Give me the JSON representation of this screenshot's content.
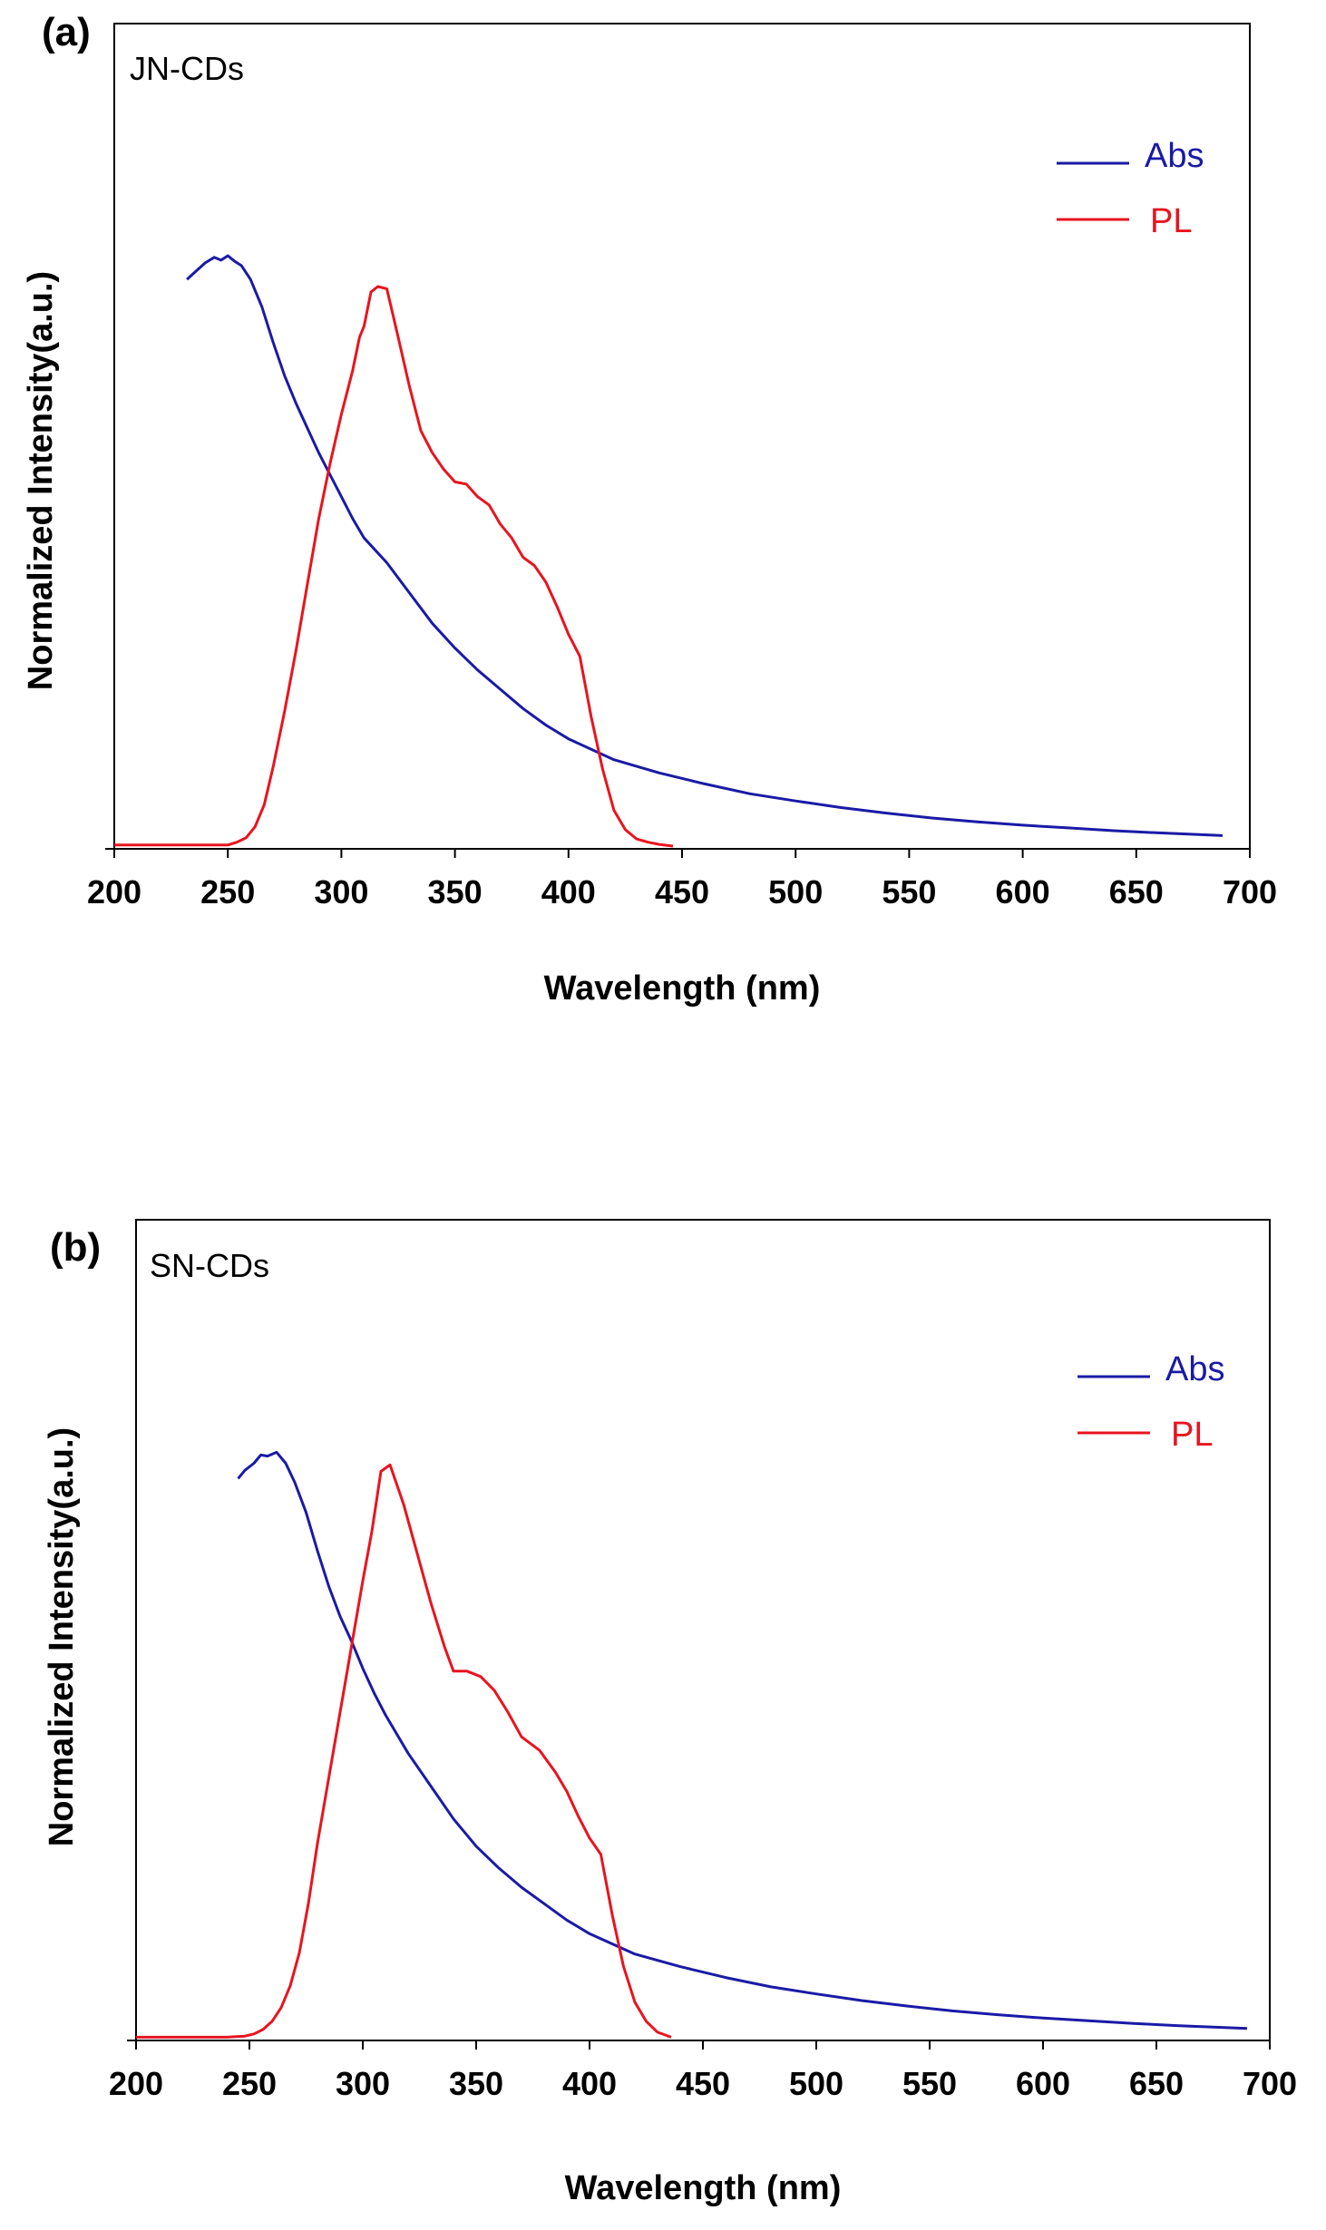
{
  "colors": {
    "abs": "#1a1aa6",
    "pl": "#e8141e",
    "axis": "#000000"
  },
  "chart_data": [
    {
      "type": "line",
      "panel_label": "(a)",
      "title": "JN-CDs",
      "xlabel": "Wavelength (nm)",
      "ylabel": "Normalized Intensity(a.u.)",
      "xlim": [
        200,
        700
      ],
      "ylim": [
        0,
        1.5
      ],
      "xticks": [
        "200",
        "250",
        "300",
        "350",
        "400",
        "450",
        "500",
        "550",
        "600",
        "650",
        "700"
      ],
      "legend_position": "top-right",
      "series": [
        {
          "name": "Abs",
          "color_key": "abs",
          "x": [
            232,
            236,
            240,
            244,
            247,
            250,
            253,
            256,
            260,
            265,
            270,
            275,
            280,
            285,
            290,
            295,
            300,
            305,
            310,
            320,
            330,
            340,
            350,
            360,
            370,
            380,
            390,
            400,
            420,
            440,
            460,
            480,
            500,
            520,
            540,
            560,
            580,
            600,
            620,
            640,
            660,
            688
          ],
          "y": [
            1.035,
            1.05,
            1.065,
            1.075,
            1.07,
            1.078,
            1.068,
            1.06,
            1.035,
            0.985,
            0.92,
            0.86,
            0.81,
            0.765,
            0.72,
            0.68,
            0.64,
            0.6,
            0.565,
            0.52,
            0.465,
            0.41,
            0.365,
            0.325,
            0.29,
            0.255,
            0.225,
            0.2,
            0.162,
            0.138,
            0.118,
            0.1,
            0.087,
            0.075,
            0.065,
            0.056,
            0.049,
            0.043,
            0.038,
            0.033,
            0.029,
            0.024
          ]
        },
        {
          "name": "PL",
          "color_key": "pl",
          "x": [
            200,
            220,
            240,
            250,
            254,
            258,
            262,
            266,
            270,
            275,
            280,
            285,
            290,
            295,
            300,
            305,
            308,
            310,
            313,
            316,
            320,
            325,
            330,
            335,
            340,
            345,
            350,
            355,
            360,
            365,
            370,
            375,
            380,
            385,
            390,
            395,
            400,
            405,
            410,
            415,
            420,
            425,
            430,
            435,
            440,
            446
          ],
          "y": [
            0.007,
            0.007,
            0.007,
            0.007,
            0.012,
            0.02,
            0.04,
            0.08,
            0.15,
            0.25,
            0.36,
            0.48,
            0.6,
            0.7,
            0.79,
            0.87,
            0.93,
            0.95,
            1.012,
            1.022,
            1.018,
            0.93,
            0.84,
            0.76,
            0.72,
            0.69,
            0.667,
            0.663,
            0.64,
            0.625,
            0.59,
            0.565,
            0.53,
            0.515,
            0.485,
            0.44,
            0.39,
            0.35,
            0.24,
            0.145,
            0.07,
            0.035,
            0.018,
            0.012,
            0.008,
            0.005
          ]
        }
      ]
    },
    {
      "type": "line",
      "panel_label": "(b)",
      "title": "SN-CDs",
      "xlabel": "Wavelength (nm)",
      "ylabel": "Normalized Intensity(a.u.)",
      "xlim": [
        200,
        700
      ],
      "ylim": [
        0,
        1.5
      ],
      "xticks": [
        "200",
        "250",
        "300",
        "350",
        "400",
        "450",
        "500",
        "550",
        "600",
        "650",
        "700"
      ],
      "legend_position": "top-right",
      "series": [
        {
          "name": "Abs",
          "color_key": "abs",
          "x": [
            245,
            248,
            252,
            255,
            258,
            262,
            266,
            270,
            275,
            280,
            285,
            290,
            295,
            300,
            305,
            310,
            320,
            330,
            340,
            350,
            360,
            370,
            380,
            390,
            400,
            420,
            440,
            460,
            480,
            500,
            520,
            540,
            560,
            580,
            600,
            620,
            640,
            660,
            690
          ],
          "y": [
            1.027,
            1.042,
            1.055,
            1.07,
            1.068,
            1.075,
            1.055,
            1.02,
            0.965,
            0.895,
            0.83,
            0.775,
            0.73,
            0.68,
            0.635,
            0.595,
            0.525,
            0.465,
            0.405,
            0.355,
            0.315,
            0.28,
            0.25,
            0.22,
            0.195,
            0.158,
            0.135,
            0.115,
            0.098,
            0.085,
            0.073,
            0.063,
            0.054,
            0.047,
            0.041,
            0.036,
            0.031,
            0.027,
            0.022
          ]
        },
        {
          "name": "PL",
          "color_key": "pl",
          "x": [
            200,
            220,
            240,
            248,
            252,
            256,
            260,
            264,
            268,
            272,
            276,
            280,
            285,
            290,
            295,
            300,
            304,
            308,
            312,
            318,
            324,
            330,
            336,
            340,
            346,
            352,
            358,
            364,
            370,
            378,
            385,
            390,
            395,
            400,
            405,
            410,
            415,
            420,
            425,
            430,
            436
          ],
          "y": [
            0.006,
            0.006,
            0.006,
            0.008,
            0.012,
            0.02,
            0.035,
            0.06,
            0.1,
            0.16,
            0.25,
            0.36,
            0.48,
            0.6,
            0.72,
            0.84,
            0.93,
            1.04,
            1.052,
            0.98,
            0.89,
            0.8,
            0.72,
            0.675,
            0.675,
            0.665,
            0.64,
            0.6,
            0.555,
            0.53,
            0.49,
            0.455,
            0.41,
            0.37,
            0.34,
            0.23,
            0.135,
            0.07,
            0.035,
            0.015,
            0.006
          ]
        }
      ]
    }
  ]
}
